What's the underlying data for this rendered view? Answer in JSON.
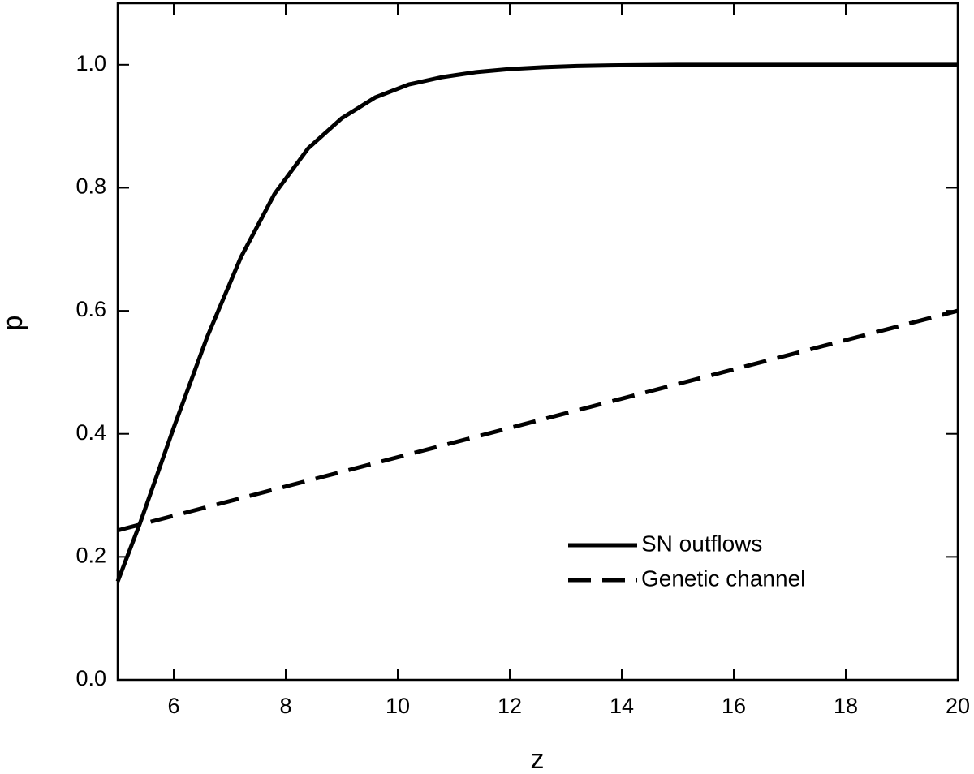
{
  "chart_data": {
    "type": "line",
    "x_label": "z",
    "y_label": "p",
    "series": [
      {
        "name": "SN outflows",
        "color": "#000000",
        "dash": "solid",
        "x": [
          5,
          5.4,
          6.0,
          6.6,
          7.2,
          7.8,
          8.4,
          9.0,
          9.6,
          10.2,
          10.8,
          11.4,
          12.0,
          12.6,
          13.2,
          13.8,
          15,
          20
        ],
        "values": [
          0.16,
          0.255,
          0.41,
          0.558,
          0.687,
          0.79,
          0.864,
          0.913,
          0.947,
          0.968,
          0.98,
          0.988,
          0.993,
          0.996,
          0.998,
          0.999,
          1.0,
          1.0
        ]
      },
      {
        "name": "Genetic channel",
        "color": "#000000",
        "dash": "dashed",
        "x": [
          5,
          20
        ],
        "values": [
          0.243,
          0.6
        ]
      }
    ],
    "xlim": [
      5,
      20
    ],
    "xticks": [
      6,
      8,
      10,
      12,
      14,
      16,
      18,
      20
    ],
    "ylim": [
      0,
      1.1
    ],
    "yticks": [
      {
        "value": 0,
        "label": "0.0"
      },
      {
        "value": 0.2,
        "label": "0.2"
      },
      {
        "value": 0.4,
        "label": "0.4"
      },
      {
        "value": 0.6,
        "label": "0.6"
      },
      {
        "value": 0.8,
        "label": "0.8"
      },
      {
        "value": 1.0,
        "label": "1.0"
      }
    ],
    "legend": "lower-right"
  }
}
